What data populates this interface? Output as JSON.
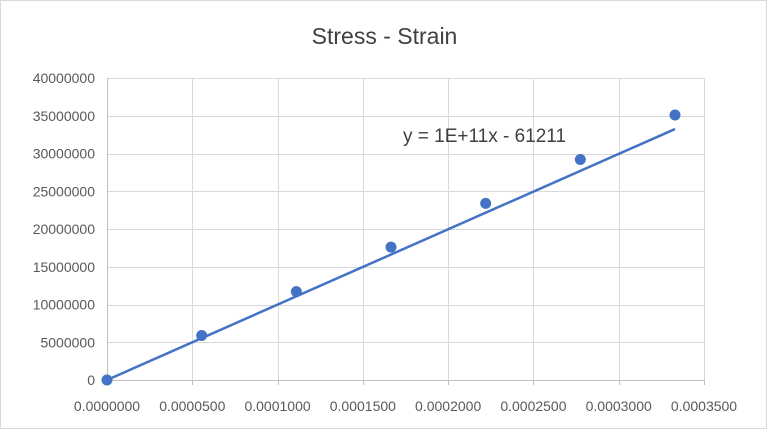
{
  "chart_data": {
    "type": "scatter",
    "title": "Stress - Strain",
    "xlabel": "",
    "ylabel": "",
    "xlim": [
      0,
      0.00035
    ],
    "ylim": [
      0,
      40000000
    ],
    "x_ticks": [
      0,
      5e-05,
      0.0001,
      0.00015,
      0.0002,
      0.00025,
      0.0003,
      0.00035
    ],
    "x_tick_labels": [
      "0.0000000",
      "0.0000500",
      "0.0001000",
      "0.0001500",
      "0.0002000",
      "0.0002500",
      "0.0003000",
      "0.0003500"
    ],
    "y_ticks": [
      0,
      5000000,
      10000000,
      15000000,
      20000000,
      25000000,
      30000000,
      35000000,
      40000000
    ],
    "y_tick_labels": [
      "0",
      "5000000",
      "10000000",
      "15000000",
      "20000000",
      "25000000",
      "30000000",
      "35000000",
      "40000000"
    ],
    "grid": "vertical and horizontal",
    "legend": "none",
    "series": [
      {
        "x": [
          0,
          5.55e-05,
          0.000111,
          0.0001665,
          0.000222,
          0.0002775,
          0.000333
        ],
        "y": [
          0,
          5900000,
          11700000,
          17600000,
          23400000,
          29200000,
          35100000
        ],
        "marker_color": "#4472c4"
      }
    ],
    "trendline": {
      "kind": "linear",
      "slope": 100000000000,
      "intercept": -61211,
      "label": "y = 1E+11x - 61211",
      "color": "#4472c4"
    },
    "colors": {
      "series": "#4472c4",
      "grid": "#d9d9d9",
      "axis": "#bfbfbf",
      "text": "#595959"
    }
  }
}
